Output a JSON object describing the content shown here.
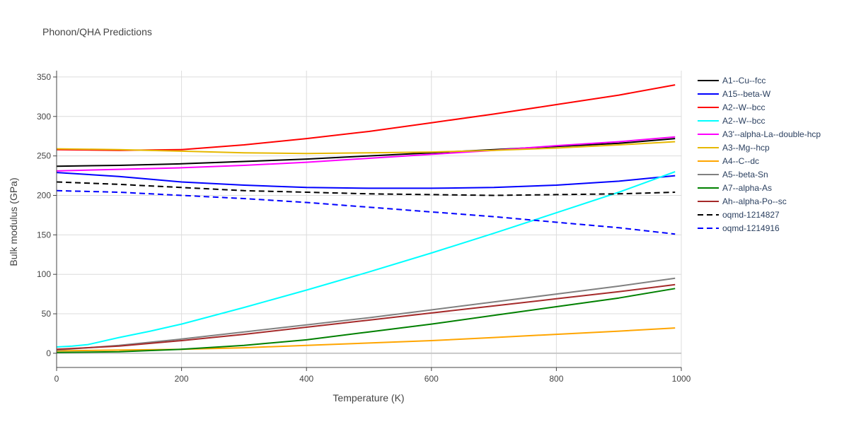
{
  "chart_data": {
    "type": "line",
    "title": "Phonon/QHA Predictions",
    "xlabel": "Temperature (K)",
    "ylabel": "Bulk modulus (GPa)",
    "xlim": [
      0,
      1000
    ],
    "ylim": [
      -18,
      358
    ],
    "x_ticks": [
      0,
      200,
      400,
      600,
      800,
      1000
    ],
    "y_ticks": [
      0,
      50,
      100,
      150,
      200,
      250,
      300,
      350
    ],
    "grid": true,
    "legend_position": "right",
    "series": [
      {
        "name": "A1--Cu--fcc",
        "color": "#000000",
        "dash": "solid",
        "x": [
          0,
          100,
          200,
          300,
          400,
          500,
          600,
          700,
          800,
          900,
          990
        ],
        "y": [
          237,
          238,
          240,
          243,
          246,
          250,
          254,
          258,
          262,
          266,
          272
        ]
      },
      {
        "name": "A15--beta-W",
        "color": "#0000ff",
        "dash": "solid",
        "x": [
          0,
          100,
          200,
          300,
          400,
          500,
          600,
          700,
          800,
          900,
          990
        ],
        "y": [
          229,
          224,
          217,
          213,
          210,
          209,
          209,
          210,
          213,
          218,
          225
        ]
      },
      {
        "name": "A2--W--bcc",
        "color": "#ff0000",
        "dash": "solid",
        "x": [
          0,
          100,
          200,
          300,
          400,
          500,
          600,
          700,
          800,
          900,
          990
        ],
        "y": [
          258,
          257,
          258,
          264,
          272,
          281,
          292,
          303,
          315,
          327,
          340
        ]
      },
      {
        "name": "A2--W--bcc",
        "color": "#00ffff",
        "dash": "solid",
        "x": [
          0,
          25,
          50,
          100,
          150,
          200,
          300,
          400,
          500,
          600,
          700,
          800,
          900,
          990
        ],
        "y": [
          8,
          9,
          11,
          20,
          28,
          37,
          58,
          80,
          103,
          127,
          152,
          178,
          204,
          230
        ]
      },
      {
        "name": "A3'--alpha-La--double-hcp",
        "color": "#ff00ff",
        "dash": "solid",
        "x": [
          0,
          100,
          200,
          300,
          400,
          500,
          600,
          700,
          800,
          900,
          990
        ],
        "y": [
          231,
          233,
          235,
          238,
          242,
          247,
          252,
          257,
          263,
          268,
          274
        ]
      },
      {
        "name": "A3--Mg--hcp",
        "color": "#e6b800",
        "dash": "solid",
        "x": [
          0,
          100,
          200,
          300,
          400,
          500,
          600,
          700,
          800,
          900,
          990
        ],
        "y": [
          259,
          258,
          256,
          254,
          253,
          254,
          255,
          257,
          260,
          264,
          268
        ]
      },
      {
        "name": "A4--C--dc",
        "color": "#ffa500",
        "dash": "solid",
        "x": [
          0,
          100,
          200,
          300,
          400,
          500,
          600,
          700,
          800,
          900,
          990
        ],
        "y": [
          3,
          4,
          5,
          7,
          10,
          13,
          16,
          20,
          24,
          28,
          32
        ]
      },
      {
        "name": "A5--beta-Sn",
        "color": "#808080",
        "dash": "solid",
        "x": [
          0,
          100,
          200,
          300,
          400,
          500,
          600,
          700,
          800,
          900,
          990
        ],
        "y": [
          4,
          10,
          18,
          27,
          36,
          45,
          55,
          65,
          75,
          85,
          95
        ]
      },
      {
        "name": "A7--alpha-As",
        "color": "#008000",
        "dash": "solid",
        "x": [
          0,
          100,
          200,
          300,
          400,
          500,
          600,
          700,
          800,
          900,
          990
        ],
        "y": [
          1,
          2,
          5,
          10,
          17,
          27,
          37,
          48,
          59,
          70,
          82
        ]
      },
      {
        "name": "Ah--alpha-Po--sc",
        "color": "#a52a2a",
        "dash": "solid",
        "x": [
          0,
          100,
          200,
          300,
          400,
          500,
          600,
          700,
          800,
          900,
          990
        ],
        "y": [
          5,
          9,
          16,
          24,
          33,
          42,
          51,
          60,
          69,
          78,
          87
        ]
      },
      {
        "name": "oqmd-1214827",
        "color": "#000000",
        "dash": "dash",
        "x": [
          0,
          100,
          200,
          300,
          400,
          500,
          600,
          700,
          800,
          900,
          990
        ],
        "y": [
          217,
          214,
          210,
          206,
          204,
          202,
          201,
          200,
          201,
          202,
          204
        ]
      },
      {
        "name": "oqmd-1214916",
        "color": "#0000ff",
        "dash": "dash",
        "x": [
          0,
          100,
          200,
          300,
          400,
          500,
          600,
          700,
          800,
          900,
          990
        ],
        "y": [
          206,
          204,
          200,
          196,
          191,
          185,
          179,
          173,
          166,
          159,
          151
        ]
      }
    ]
  }
}
